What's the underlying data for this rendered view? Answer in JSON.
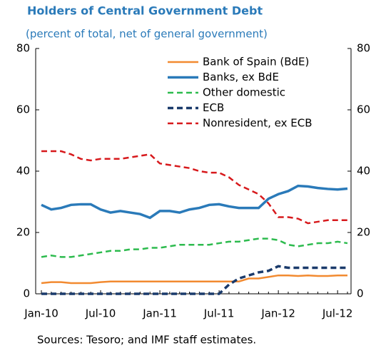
{
  "chart_data": {
    "type": "line",
    "title": "Holders of Central Government Debt",
    "subtitle": "(percent of total, net of general government)",
    "source": "Sources: Tesoro; and IMF staff estimates.",
    "categories": [
      "Jan-10",
      null,
      null,
      null,
      null,
      null,
      "Jul-10",
      null,
      null,
      null,
      null,
      null,
      "Jan-11",
      null,
      null,
      null,
      null,
      null,
      "Jul-11",
      null,
      null,
      null,
      null,
      null,
      "Jan-12",
      null,
      null,
      null,
      null,
      null,
      "Jul-12",
      null
    ],
    "ylim": [
      0,
      80
    ],
    "yticks": [
      0,
      20,
      40,
      60,
      80
    ],
    "y2lim": [
      0,
      80
    ],
    "y2ticks": [
      0,
      20,
      40,
      60,
      80
    ],
    "legend": "upper right",
    "series": [
      {
        "name": "Bank of Spain (BdE)",
        "color": "#f28a30",
        "dashed": false,
        "linewidth": 2.5,
        "values": [
          3.5,
          3.8,
          3.8,
          3.5,
          3.5,
          3.5,
          3.8,
          4,
          4,
          4,
          4,
          4,
          4,
          4,
          4,
          4,
          4,
          4,
          4,
          4,
          4,
          5,
          5,
          5.5,
          6,
          6,
          5.8,
          6,
          5.8,
          5.8,
          6,
          6
        ]
      },
      {
        "name": "Banks, ex BdE",
        "color": "#2a7ab9",
        "dashed": false,
        "linewidth": 3.5,
        "values": [
          29,
          27.5,
          28,
          29,
          29.2,
          29.2,
          27.5,
          26.5,
          27,
          26.5,
          26,
          24.8,
          27,
          27,
          26.5,
          27.5,
          28,
          29,
          29.2,
          28.5,
          28,
          28,
          28,
          31,
          32.5,
          33.5,
          35.2,
          35,
          34.5,
          34.2,
          34,
          34.3
        ]
      },
      {
        "name": "Other domestic",
        "color": "#2dbb4e",
        "dashed": true,
        "linewidth": 2.5,
        "values": [
          12,
          12.5,
          12,
          12,
          12.5,
          13,
          13.5,
          14,
          14,
          14.5,
          14.5,
          15,
          15,
          15.5,
          16,
          16,
          16,
          16,
          16.5,
          17,
          17,
          17.5,
          18,
          18,
          17.5,
          16,
          15.5,
          16,
          16.5,
          16.5,
          17,
          16.5
        ]
      },
      {
        "name": "ECB",
        "color": "#1a3a6b",
        "dashed": true,
        "linewidth": 3.5,
        "values": [
          0,
          0,
          0,
          0,
          0,
          0,
          0,
          0,
          0,
          0,
          0,
          0,
          0,
          0,
          0,
          0,
          0,
          0,
          0,
          3,
          5,
          6,
          7,
          7.5,
          9,
          8.5,
          8.5,
          8.5,
          8.5,
          8.5,
          8.5,
          8.5
        ]
      },
      {
        "name": "Nonresident, ex ECB",
        "color": "#d7191c",
        "dashed": true,
        "linewidth": 2.5,
        "values": [
          46.5,
          46.5,
          46.5,
          45.5,
          44,
          43.5,
          44,
          44,
          44,
          44.5,
          45,
          45.5,
          42.5,
          42,
          41.5,
          41,
          40,
          39.5,
          39.5,
          38,
          35.5,
          34,
          32.5,
          29.5,
          25,
          25,
          24.5,
          23,
          23.5,
          24,
          24,
          24
        ]
      }
    ]
  }
}
